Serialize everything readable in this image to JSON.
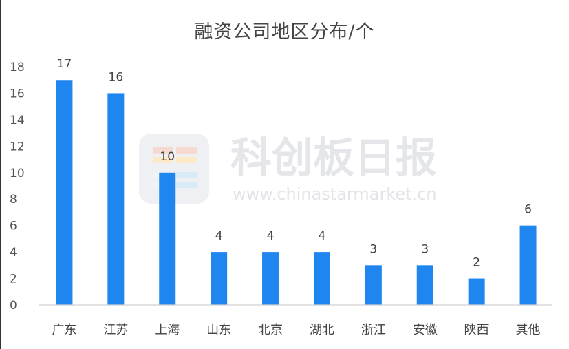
{
  "chart_data": {
    "type": "bar",
    "title": "融资公司地区分布/个",
    "categories": [
      "广东",
      "江苏",
      "上海",
      "山东",
      "北京",
      "湖北",
      "浙江",
      "安徽",
      "陕西",
      "其他"
    ],
    "values": [
      17,
      16,
      10,
      4,
      4,
      4,
      3,
      3,
      2,
      6
    ],
    "ylim": [
      0,
      18
    ],
    "yticks": [
      0,
      2,
      4,
      6,
      8,
      10,
      12,
      14,
      16,
      18
    ],
    "bar_color": "#1f86f0",
    "grid": false,
    "data_labels": true
  },
  "watermark": {
    "name": "科创板日报",
    "url": "www.chinastarmarket.cn"
  }
}
